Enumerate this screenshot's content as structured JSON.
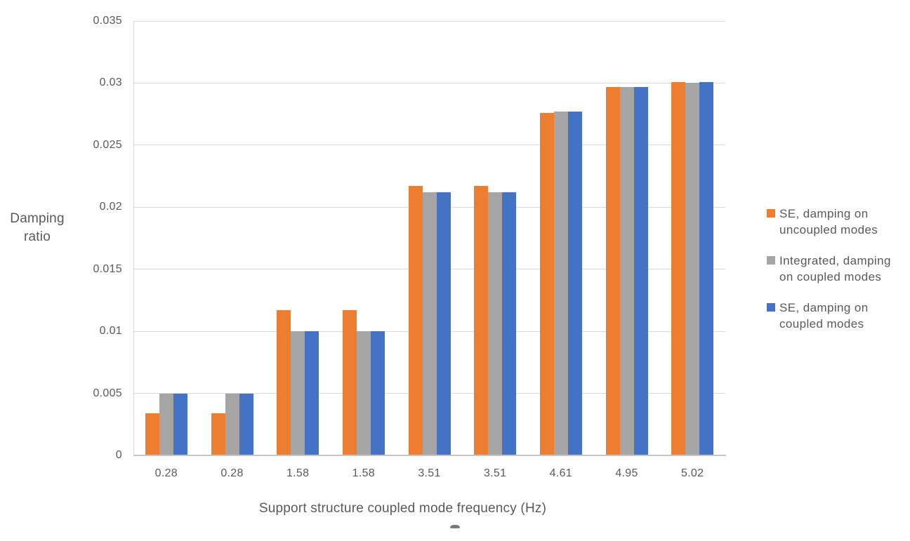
{
  "chart_data": {
    "type": "bar",
    "title": "",
    "xlabel": "Support structure coupled mode frequency (Hz)",
    "ylabel": "Damping ratio",
    "ylabel_lines": [
      "Damping",
      "ratio"
    ],
    "categories": [
      "0.28",
      "0.28",
      "1.58",
      "1.58",
      "3.51",
      "3.51",
      "4.61",
      "4.95",
      "5.02"
    ],
    "series": [
      {
        "name": "SE, damping on uncoupled modes",
        "legend_lines": [
          "SE, damping on",
          "uncoupled modes"
        ],
        "color": "#ED7D31",
        "values": [
          0.0034,
          0.0034,
          0.0117,
          0.0117,
          0.0217,
          0.0217,
          0.0276,
          0.0297,
          0.0301
        ]
      },
      {
        "name": "Integrated, damping on coupled modes",
        "legend_lines": [
          "Integrated, damping",
          "on coupled modes"
        ],
        "color": "#A5A5A5",
        "values": [
          0.005,
          0.005,
          0.01,
          0.01,
          0.0212,
          0.0212,
          0.0277,
          0.0297,
          0.03
        ]
      },
      {
        "name": "SE, damping on coupled modes",
        "legend_lines": [
          "SE, damping on",
          "coupled modes"
        ],
        "color": "#4472C4",
        "values": [
          0.005,
          0.005,
          0.01,
          0.01,
          0.0212,
          0.0212,
          0.0277,
          0.0297,
          0.0301
        ]
      }
    ],
    "ylim": [
      0,
      0.035
    ],
    "ytick_step": 0.005,
    "yticks": [
      "0",
      "0.005",
      "0.01",
      "0.015",
      "0.02",
      "0.025",
      "0.03",
      "0.035"
    ],
    "grid": true,
    "legend_position": "right",
    "background_color": "#FFFFFF",
    "text_color": "#595959",
    "gridline_color": "#D9D9D9"
  }
}
